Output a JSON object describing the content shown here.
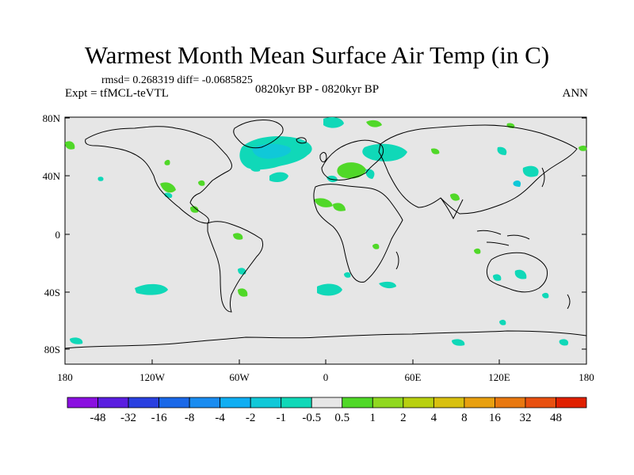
{
  "title": "Warmest Month Mean Surface Air Temp (in C)",
  "stats": "rmsd= 0.268319  diff= -0.0685825",
  "experiment": "Expt = tfMCL-teVTL",
  "period": "0820kyr BP - 0820kyr BP",
  "season": "ANN",
  "map": {
    "background_color": "#e6e6e6",
    "lat_ticks": [
      "80N",
      "40N",
      "0",
      "40S",
      "80S"
    ],
    "lon_ticks": [
      "180",
      "120W",
      "60W",
      "0",
      "60E",
      "120E",
      "180"
    ]
  },
  "colorbar": {
    "colors": [
      "#8a10e0",
      "#5a1ee0",
      "#2a40e0",
      "#1a68e8",
      "#1a8cf0",
      "#10aef2",
      "#10c8d8",
      "#10d8b8",
      "#e6e6e6",
      "#50d828",
      "#90d820",
      "#b8d010",
      "#d8c010",
      "#e8a010",
      "#e87810",
      "#e85010",
      "#e02000"
    ],
    "labels": [
      "-48",
      "-32",
      "-16",
      "-8",
      "-4",
      "-2",
      "-1",
      "-0.5",
      "0.5",
      "1",
      "2",
      "4",
      "8",
      "16",
      "32",
      "48"
    ]
  }
}
